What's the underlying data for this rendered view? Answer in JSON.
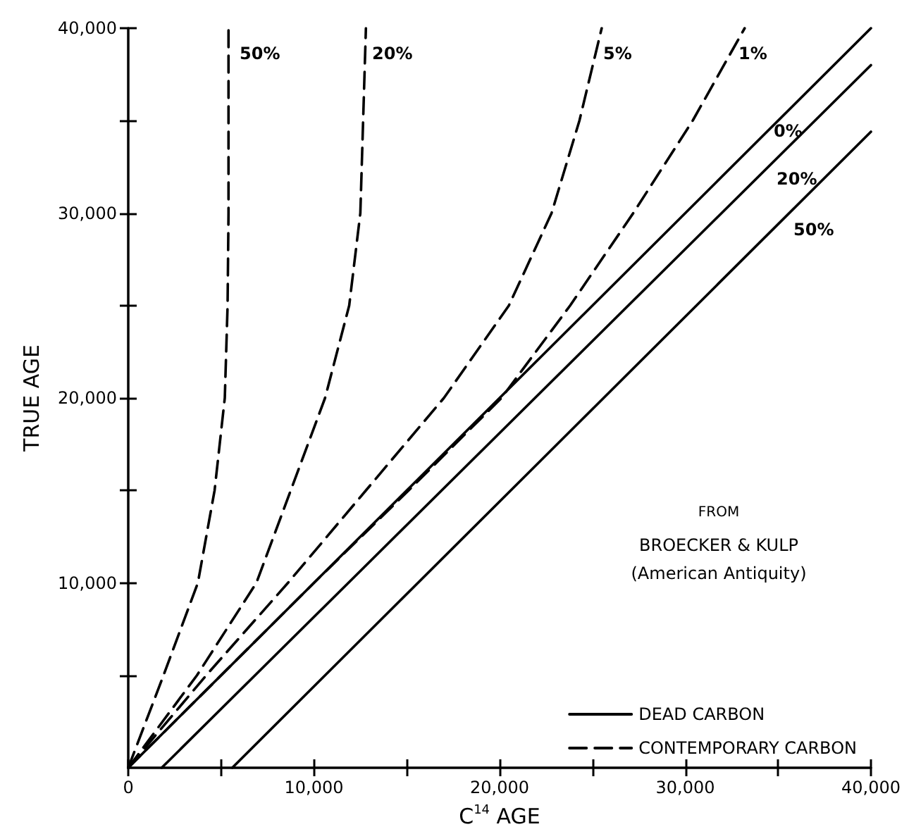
{
  "chart_data": {
    "type": "line",
    "xlabel": "C$^{14}$ AGE",
    "ylabel": "TRUE AGE",
    "xlim": [
      0,
      40000
    ],
    "ylim": [
      0,
      40000
    ],
    "xticks": [
      0,
      {
        "value": 5000,
        "label": null
      },
      {
        "value": 10000,
        "label": "10,000"
      },
      {
        "value": 15000,
        "label": null
      },
      {
        "value": 20000,
        "label": "20,000"
      },
      {
        "value": 25000,
        "label": null
      },
      {
        "value": 30000,
        "label": "30,000"
      },
      {
        "value": 35000,
        "label": null
      },
      {
        "value": 40000,
        "label": "40,000"
      }
    ],
    "yticks": [
      {
        "value": 5000,
        "label": null
      },
      {
        "value": 10000,
        "label": "10,000"
      },
      {
        "value": 15000,
        "label": null
      },
      {
        "value": 20000,
        "label": "20,000"
      },
      {
        "value": 25000,
        "label": null
      },
      {
        "value": 30000,
        "label": "30,000"
      },
      {
        "value": 35000,
        "label": null
      },
      {
        "value": 40000,
        "label": "40,000"
      }
    ],
    "grid": false,
    "legend": "bottom right",
    "marker": "none",
    "series": [
      {
        "name": "DEAD CARBON",
        "color": "#000000",
        "line_style": "solid",
        "x": [
          0,
          40000
        ],
        "values": [
          0,
          40000
        ]
      },
      {
        "color": "#000000",
        "line_style": "solid",
        "x": [
          1800,
          40000
        ],
        "values": [
          0,
          38000
        ]
      },
      {
        "color": "#000000",
        "line_style": "solid",
        "x": [
          5600,
          40000
        ],
        "values": [
          0,
          34400
        ]
      },
      {
        "name": "CONTEMPORARY CARBON",
        "color": "#000000",
        "line_style": "dashed",
        "x": [
          0,
          1900,
          3750,
          4650,
          5200,
          5350,
          5400,
          5400
        ],
        "values": [
          0,
          5000,
          10000,
          15000,
          20000,
          25000,
          30000,
          40000
        ]
      },
      {
        "color": "#000000",
        "line_style": "dashed",
        "x": [
          0,
          3700,
          6900,
          8750,
          10600,
          11900,
          12500,
          12800
        ],
        "values": [
          0,
          5000,
          10000,
          15000,
          20000,
          25000,
          30000,
          40000
        ]
      },
      {
        "color": "#000000",
        "line_style": "dashed",
        "x": [
          0,
          4200,
          8600,
          12800,
          17000,
          20500,
          22800,
          24300,
          25500
        ],
        "values": [
          0,
          5000,
          10000,
          15000,
          20000,
          25000,
          30000,
          35000,
          40000
        ]
      },
      {
        "color": "#000000",
        "line_style": "dashed",
        "x": [
          0,
          5000,
          10000,
          15100,
          20100,
          23800,
          27200,
          30400,
          33200
        ],
        "values": [
          0,
          5000,
          10000,
          15000,
          20000,
          25000,
          30000,
          35000,
          40000
        ]
      }
    ],
    "annotations": [
      "50%",
      "20%",
      "5%",
      "1%",
      "0%",
      "20%",
      "50%",
      "FROM",
      "BROECKER & KULP",
      "(American Antiquity)"
    ]
  }
}
